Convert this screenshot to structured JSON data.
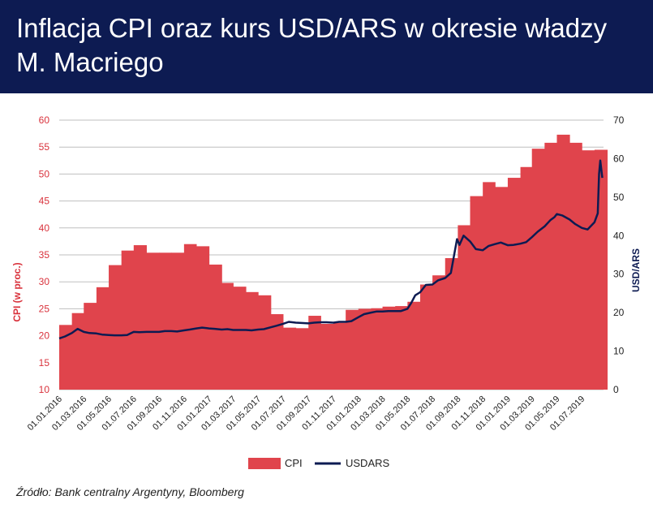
{
  "title": "Inflacja CPI oraz kurs USD/ARS w okresie władzy M. Macriego",
  "source": "Źródło: Bank centralny Argentyny, Bloomberg",
  "colors": {
    "header": "#0d1b52",
    "cpi": "#e0444c",
    "usd": "#0d1b52",
    "left_axis": "#d9323c",
    "grid": "#bfbfbf"
  },
  "chart_data": {
    "type": "bar+line",
    "title": "Inflacja CPI oraz kurs USD/ARS w okresie władzy M. Macriego",
    "ylabel_left": "CPI (w proc.)",
    "ylabel_right": "USD/ARS",
    "ylim_left": [
      10,
      60
    ],
    "ylim_right": [
      0,
      70
    ],
    "yticks_left": [
      "10",
      "15",
      "20",
      "25",
      "30",
      "35",
      "40",
      "45",
      "50",
      "55",
      "60"
    ],
    "yticks_right": [
      "0",
      "10",
      "20",
      "30",
      "40",
      "50",
      "60",
      "70"
    ],
    "xticks": [
      "01.01.2016",
      "01.03.2016",
      "01.05.2016",
      "01.07.2016",
      "01.09.2016",
      "01.11.2016",
      "01.01.2017",
      "01.03.2017",
      "01.05.2017",
      "01.07.2017",
      "01.09.2017",
      "01.11.2017",
      "01.01.2018",
      "01.03.2018",
      "01.05.2018",
      "01.07.2018",
      "01.09.2018",
      "01.11.2018",
      "01.01.2019",
      "01.03.2019",
      "01.05.2019",
      "01.07.2019"
    ],
    "grid": true,
    "legend_position": "bottom-center",
    "series": [
      {
        "name": "CPI",
        "type": "bar",
        "categories": [
          "2016-01",
          "2016-02",
          "2016-03",
          "2016-04",
          "2016-05",
          "2016-06",
          "2016-07",
          "2016-08",
          "2016-09",
          "2016-10",
          "2016-11",
          "2016-12",
          "2017-01",
          "2017-02",
          "2017-03",
          "2017-04",
          "2017-05",
          "2017-06",
          "2017-07",
          "2017-08",
          "2017-09",
          "2017-10",
          "2017-11",
          "2017-12",
          "2018-01",
          "2018-02",
          "2018-03",
          "2018-04",
          "2018-05",
          "2018-06",
          "2018-07",
          "2018-08",
          "2018-09",
          "2018-10",
          "2018-11",
          "2018-12",
          "2019-01",
          "2019-02",
          "2019-03",
          "2019-04",
          "2019-05",
          "2019-06",
          "2019-07",
          "2019-08"
        ],
        "values": [
          22.0,
          24.2,
          26.1,
          29.0,
          33.1,
          35.8,
          36.8,
          35.4,
          35.4,
          35.4,
          37.0,
          36.6,
          33.2,
          29.8,
          29.1,
          28.1,
          27.5,
          24.0,
          21.5,
          21.4,
          23.7,
          22.2,
          22.4,
          24.8,
          25.0,
          25.1,
          25.4,
          25.5,
          26.3,
          29.5,
          31.2,
          34.4,
          40.5,
          45.9,
          48.5,
          47.6,
          49.3,
          51.3,
          54.7,
          55.8,
          57.3,
          55.8,
          54.4,
          54.5
        ]
      },
      {
        "name": "USDARS",
        "type": "line",
        "dates": [
          "2016-01-01",
          "2016-01-15",
          "2016-02-01",
          "2016-02-15",
          "2016-03-01",
          "2016-03-15",
          "2016-04-01",
          "2016-04-15",
          "2016-05-01",
          "2016-05-15",
          "2016-06-01",
          "2016-06-15",
          "2016-07-01",
          "2016-07-15",
          "2016-08-01",
          "2016-08-15",
          "2016-09-01",
          "2016-09-15",
          "2016-10-01",
          "2016-10-15",
          "2016-11-01",
          "2016-11-15",
          "2016-12-01",
          "2016-12-15",
          "2017-01-01",
          "2017-01-15",
          "2017-02-01",
          "2017-02-15",
          "2017-03-01",
          "2017-03-15",
          "2017-04-01",
          "2017-04-15",
          "2017-05-01",
          "2017-05-15",
          "2017-06-01",
          "2017-06-15",
          "2017-07-01",
          "2017-07-15",
          "2017-08-01",
          "2017-08-15",
          "2017-09-01",
          "2017-09-15",
          "2017-10-01",
          "2017-10-15",
          "2017-11-01",
          "2017-11-15",
          "2017-12-01",
          "2017-12-15",
          "2018-01-01",
          "2018-01-15",
          "2018-02-01",
          "2018-02-15",
          "2018-03-01",
          "2018-03-15",
          "2018-04-01",
          "2018-04-15",
          "2018-05-01",
          "2018-05-10",
          "2018-05-20",
          "2018-06-01",
          "2018-06-15",
          "2018-07-01",
          "2018-07-15",
          "2018-08-01",
          "2018-08-15",
          "2018-08-30",
          "2018-09-05",
          "2018-09-15",
          "2018-10-01",
          "2018-10-15",
          "2018-11-01",
          "2018-11-15",
          "2018-12-01",
          "2018-12-15",
          "2019-01-01",
          "2019-01-15",
          "2019-02-01",
          "2019-02-15",
          "2019-03-01",
          "2019-03-15",
          "2019-04-01",
          "2019-04-15",
          "2019-04-25",
          "2019-05-01",
          "2019-05-15",
          "2019-06-01",
          "2019-06-15",
          "2019-07-01",
          "2019-07-15",
          "2019-08-01",
          "2019-08-09",
          "2019-08-12",
          "2019-08-15",
          "2019-08-20"
        ],
        "values": [
          13.3,
          13.8,
          14.7,
          15.8,
          15.0,
          14.7,
          14.6,
          14.3,
          14.2,
          14.1,
          14.1,
          14.2,
          15.0,
          14.9,
          15.0,
          15.0,
          15.0,
          15.2,
          15.2,
          15.1,
          15.4,
          15.6,
          15.9,
          16.1,
          15.9,
          15.8,
          15.6,
          15.7,
          15.5,
          15.5,
          15.5,
          15.4,
          15.6,
          15.7,
          16.2,
          16.6,
          17.1,
          17.6,
          17.4,
          17.3,
          17.2,
          17.4,
          17.5,
          17.5,
          17.4,
          17.6,
          17.6,
          17.8,
          18.8,
          19.6,
          20.0,
          20.3,
          20.3,
          20.4,
          20.4,
          20.4,
          21.0,
          22.5,
          24.5,
          25.3,
          27.2,
          27.3,
          28.4,
          29.0,
          30.3,
          39.1,
          37.6,
          40.0,
          38.5,
          36.5,
          36.2,
          37.3,
          37.8,
          38.2,
          37.5,
          37.6,
          37.9,
          38.3,
          39.6,
          41.0,
          42.4,
          44.0,
          44.8,
          45.6,
          45.2,
          44.2,
          43.0,
          42.0,
          41.6,
          43.5,
          45.8,
          56.0,
          59.5,
          55.0
        ]
      }
    ]
  }
}
